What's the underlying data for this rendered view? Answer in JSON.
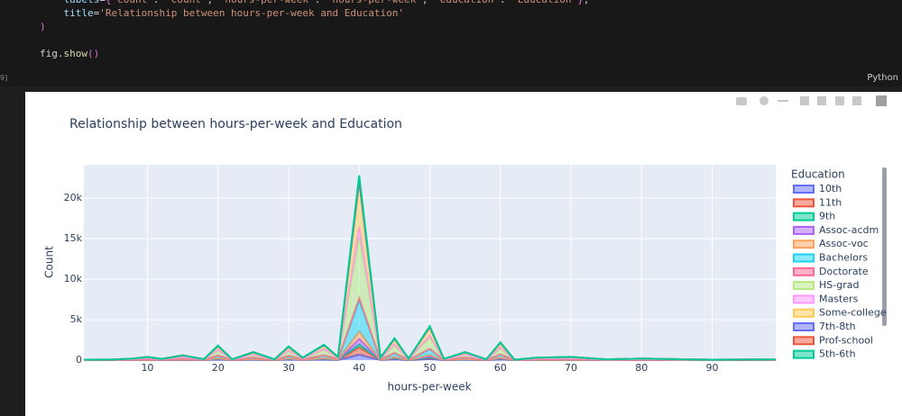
{
  "cell": {
    "execution_count": "9]",
    "language": "Python",
    "code_lines": [
      "    labels={'count': 'Count', 'hours-per-week': 'hours-per-week', 'education': 'Education'},",
      "    title='Relationship between hours-per-week and Education'",
      ")",
      "",
      "fig.show()"
    ]
  },
  "chart_data": {
    "type": "area",
    "title": "Relationship between hours-per-week and Education",
    "x_label": "hours-per-week",
    "y_label": "Count",
    "legend_title": "Education",
    "x": [
      1,
      5,
      8,
      10,
      12,
      15,
      18,
      20,
      22,
      25,
      28,
      30,
      32,
      35,
      37,
      40,
      43,
      45,
      47,
      50,
      52,
      55,
      58,
      60,
      62,
      65,
      70,
      75,
      80,
      90,
      99
    ],
    "xlim": [
      1,
      99
    ],
    "xticks": [
      10,
      20,
      30,
      40,
      50,
      60,
      70,
      80,
      90
    ],
    "ylim": [
      0,
      24100
    ],
    "yticks": [
      0,
      {
        "value": 5000,
        "label": "5k"
      },
      {
        "value": 10000,
        "label": "10k"
      },
      {
        "value": 15000,
        "label": "15k"
      },
      {
        "value": 20000,
        "label": "20k"
      }
    ],
    "grid": true,
    "legend": "right",
    "series": [
      {
        "name": "10th",
        "color": "#636efa",
        "values": [
          2,
          2,
          6,
          12,
          5,
          18,
          4,
          54,
          3,
          30,
          3,
          51,
          9,
          57,
          12,
          684,
          9,
          81,
          6,
          126,
          5,
          30,
          3,
          66,
          2,
          9,
          12,
          3,
          6,
          2,
          3
        ]
      },
      {
        "name": "11th",
        "color": "#EF553B",
        "values": [
          2,
          3,
          8,
          16,
          6,
          24,
          5,
          72,
          4,
          40,
          4,
          68,
          12,
          76,
          16,
          912,
          12,
          108,
          8,
          168,
          6,
          40,
          4,
          88,
          2,
          12,
          16,
          4,
          8,
          2,
          4
        ]
      },
      {
        "name": "9th",
        "color": "#00cc96",
        "values": [
          1,
          1,
          3,
          6,
          2,
          9,
          2,
          27,
          2,
          15,
          2,
          26,
          5,
          29,
          6,
          342,
          5,
          41,
          3,
          63,
          2,
          15,
          2,
          33,
          1,
          5,
          6,
          2,
          3,
          1,
          2
        ]
      },
      {
        "name": "Assoc-acdm",
        "color": "#ab63fa",
        "values": [
          2,
          2,
          6,
          12,
          5,
          18,
          4,
          54,
          3,
          30,
          3,
          51,
          9,
          57,
          12,
          684,
          9,
          81,
          6,
          126,
          5,
          30,
          3,
          66,
          2,
          9,
          12,
          3,
          6,
          2,
          3
        ]
      },
      {
        "name": "Assoc-voc",
        "color": "#FFA15A",
        "values": [
          2,
          3,
          8,
          16,
          6,
          24,
          5,
          72,
          4,
          40,
          4,
          68,
          12,
          76,
          16,
          912,
          12,
          108,
          8,
          168,
          6,
          40,
          4,
          88,
          2,
          12,
          16,
          4,
          8,
          2,
          4
        ]
      },
      {
        "name": "Bachelors",
        "color": "#19d3f3",
        "values": [
          9,
          14,
          34,
          68,
          26,
          102,
          20,
          306,
          17,
          170,
          17,
          289,
          51,
          323,
          68,
          3876,
          51,
          459,
          34,
          714,
          26,
          170,
          17,
          374,
          9,
          51,
          68,
          17,
          34,
          9,
          17
        ]
      },
      {
        "name": "Doctorate",
        "color": "#FF6692",
        "values": [
          1,
          1,
          3,
          5,
          2,
          8,
          2,
          23,
          1,
          13,
          1,
          22,
          4,
          25,
          5,
          296,
          4,
          35,
          3,
          55,
          2,
          13,
          1,
          29,
          1,
          4,
          5,
          1,
          3,
          1,
          1
        ]
      },
      {
        "name": "HS-grad",
        "color": "#B6E880",
        "values": [
          16,
          26,
          66,
          132,
          50,
          198,
          40,
          594,
          33,
          330,
          33,
          561,
          99,
          627,
          132,
          7524,
          99,
          891,
          66,
          1386,
          50,
          330,
          33,
          726,
          16,
          99,
          132,
          33,
          66,
          16,
          33
        ]
      },
      {
        "name": "Masters",
        "color": "#FF97FF",
        "values": [
          3,
          4,
          11,
          22,
          8,
          33,
          7,
          99,
          6,
          55,
          6,
          94,
          17,
          105,
          22,
          1254,
          17,
          149,
          11,
          231,
          8,
          55,
          6,
          121,
          3,
          17,
          22,
          6,
          11,
          3,
          6
        ]
      },
      {
        "name": "Some-college",
        "color": "#FECB52",
        "values": [
          11,
          18,
          46,
          92,
          34,
          138,
          28,
          414,
          23,
          230,
          23,
          391,
          69,
          437,
          92,
          5244,
          69,
          621,
          46,
          966,
          34,
          230,
          23,
          506,
          11,
          69,
          92,
          23,
          46,
          11,
          23
        ]
      },
      {
        "name": "7th-8th",
        "color": "#636efa",
        "values": [
          1,
          2,
          4,
          8,
          3,
          12,
          2,
          36,
          2,
          20,
          2,
          34,
          6,
          38,
          8,
          456,
          6,
          54,
          4,
          84,
          3,
          20,
          2,
          44,
          1,
          6,
          8,
          2,
          4,
          1,
          2
        ]
      },
      {
        "name": "Prof-school",
        "color": "#EF553B",
        "values": [
          1,
          1,
          3,
          7,
          3,
          10,
          2,
          31,
          2,
          17,
          2,
          29,
          5,
          32,
          7,
          388,
          5,
          46,
          3,
          71,
          3,
          17,
          2,
          37,
          1,
          5,
          7,
          2,
          3,
          1,
          2
        ]
      },
      {
        "name": "5th-6th",
        "color": "#00cc96",
        "values": [
          0,
          1,
          2,
          4,
          2,
          6,
          1,
          18,
          1,
          10,
          1,
          17,
          3,
          19,
          4,
          228,
          3,
          27,
          2,
          42,
          2,
          10,
          1,
          22,
          0,
          3,
          4,
          1,
          2,
          0,
          1
        ]
      }
    ]
  }
}
